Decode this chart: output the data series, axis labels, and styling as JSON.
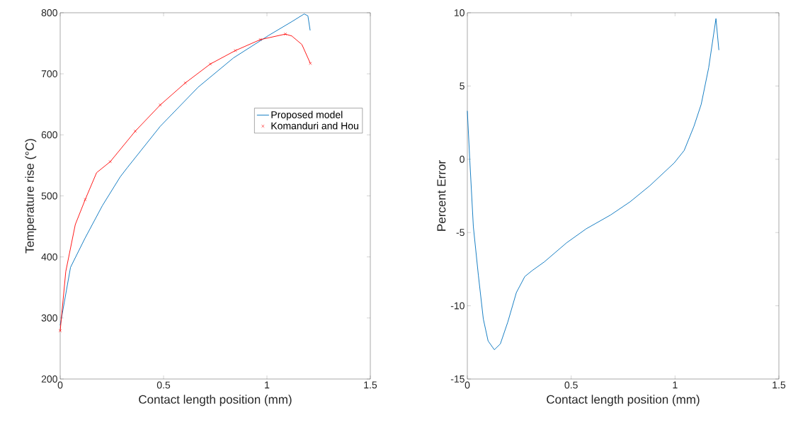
{
  "chart_data": [
    {
      "type": "line",
      "xlabel": "Contact length position (mm)",
      "ylabel": "Temperature rise (°C)",
      "xlim": [
        0,
        1.5
      ],
      "xticks": [
        0,
        0.5,
        1,
        1.5
      ],
      "ylim": [
        200,
        800
      ],
      "yticks": [
        200,
        300,
        400,
        500,
        600,
        700,
        800
      ],
      "legend": "right",
      "series": [
        {
          "name": "Proposed model",
          "color": "#0072bd",
          "x": [
            0,
            0.05,
            0.119,
            0.204,
            0.29,
            0.324,
            0.484,
            0.667,
            0.838,
            1.009,
            1.123,
            1.18,
            1.198,
            1.209
          ],
          "values": [
            288,
            383,
            430,
            484,
            531,
            546,
            614,
            678,
            726,
            763,
            786,
            798,
            795,
            771
          ]
        },
        {
          "type": "line",
          "color": "#ff0000",
          "x": [
            0,
            0.027,
            0.073,
            0.121,
            0.176,
            0.242,
            0.363,
            0.484,
            0.605,
            0.726,
            0.847,
            0.968,
            1.089,
            1.12,
            1.169,
            1.21
          ],
          "values": [
            279,
            376,
            453,
            494,
            538,
            556,
            606,
            649,
            685,
            716,
            738,
            756,
            765,
            762,
            748,
            717
          ]
        },
        {
          "type": "scatter",
          "name": "Komanduri and Hou",
          "color": "#ff0000",
          "marker": "cross",
          "x": [
            0,
            0.121,
            0.242,
            0.363,
            0.484,
            0.605,
            0.726,
            0.847,
            0.968,
            1.089,
            1.21
          ],
          "values": [
            279,
            494,
            556,
            606,
            649,
            685,
            716,
            738,
            756,
            765,
            717
          ]
        }
      ]
    },
    {
      "type": "line",
      "xlabel": "Contact length position (mm)",
      "ylabel": "Percent Error",
      "xlim": [
        0,
        1.5
      ],
      "xticks": [
        0,
        0.5,
        1,
        1.5
      ],
      "ylim": [
        -15,
        10
      ],
      "yticks": [
        -15,
        -10,
        -5,
        0,
        5,
        10
      ],
      "series": [
        {
          "color": "#0072bd",
          "x": [
            0,
            0.012,
            0.029,
            0.053,
            0.077,
            0.1,
            0.13,
            0.159,
            0.195,
            0.236,
            0.277,
            0.312,
            0.371,
            0.478,
            0.572,
            0.69,
            0.784,
            0.879,
            0.996,
            1.044,
            1.091,
            1.126,
            1.162,
            1.197,
            1.211
          ],
          "values": [
            3.3,
            -0.1,
            -4.6,
            -7.9,
            -10.9,
            -12.4,
            -13.0,
            -12.6,
            -11.1,
            -9.1,
            -8.0,
            -7.6,
            -7.0,
            -5.7,
            -4.75,
            -3.8,
            -2.9,
            -1.8,
            -0.25,
            0.6,
            2.25,
            3.75,
            6.25,
            9.6,
            7.45
          ]
        }
      ]
    }
  ]
}
